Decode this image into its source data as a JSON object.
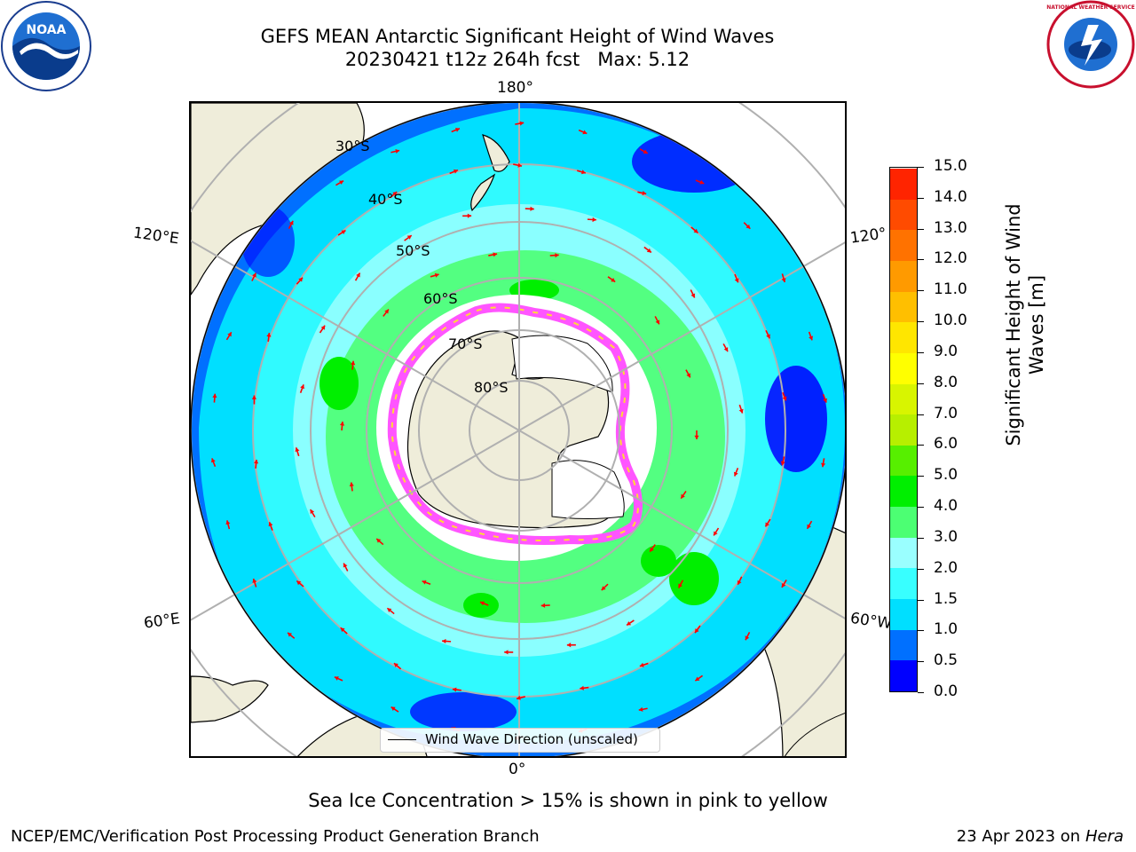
{
  "header": {
    "title_line1": "GEFS MEAN Antarctic Significant Height of Wind Waves",
    "title_line2": "20230421 t12z 264h fcst   Max: 5.12"
  },
  "logos": {
    "left": {
      "name": "noaa-logo",
      "text": "NOAA"
    },
    "right": {
      "name": "nws-logo",
      "text": "NATIONAL WEATHER SERVICE"
    }
  },
  "map": {
    "longitude_labels": [
      "180°",
      "120°E",
      "120°",
      "60°E",
      "60°W",
      "0°"
    ],
    "latitude_labels": [
      "30°S",
      "40°S",
      "50°S",
      "60°S",
      "70°S",
      "80°S"
    ],
    "land_color": "#efedda",
    "ice_color": "#ff55ff",
    "legend_label": "Wind Wave Direction (unscaled)",
    "arrow_color": "#ff0000"
  },
  "colorbar": {
    "label": "Significant Height of Wind Waves [m]",
    "ticks": [
      "0.0",
      "0.5",
      "1.0",
      "1.5",
      "2.0",
      "3.0",
      "4.0",
      "5.0",
      "6.0",
      "7.0",
      "8.0",
      "9.0",
      "10.0",
      "11.0",
      "12.0",
      "13.0",
      "14.0",
      "15.0"
    ],
    "colors": [
      "#0000ff",
      "#0070ff",
      "#00dfff",
      "#38ffff",
      "#9affff",
      "#4cff73",
      "#00ef00",
      "#57ef00",
      "#b7ef00",
      "#d8f500",
      "#ffff00",
      "#ffe600",
      "#ffbf00",
      "#ff9a00",
      "#ff7200",
      "#ff4b00",
      "#ff2400"
    ]
  },
  "footer": {
    "note": "Sea Ice Concentration > 15% is shown in pink to yellow",
    "left": "NCEP/EMC/Verification Post Processing Product Generation Branch",
    "right_prefix": "23 Apr 2023 on ",
    "right_machine": "Hera"
  }
}
